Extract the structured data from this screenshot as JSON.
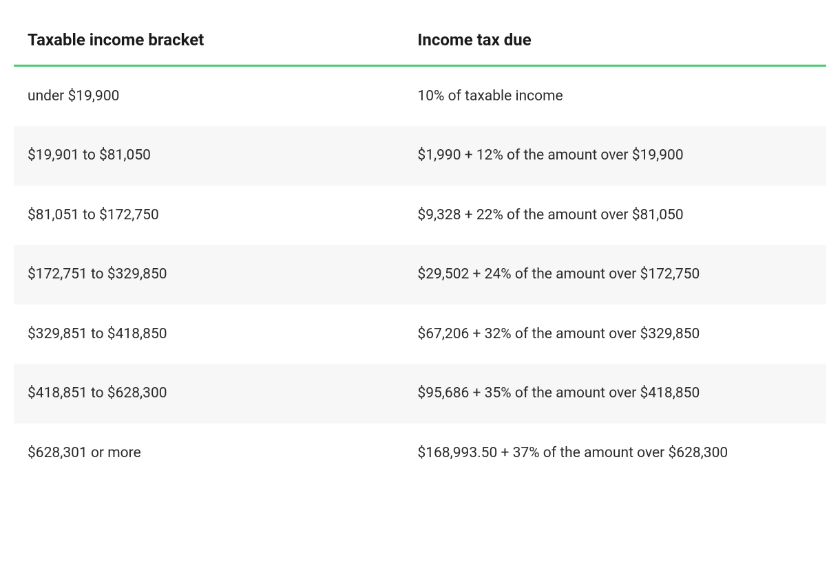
{
  "table": {
    "type": "table",
    "header_border_color": "#4bc970",
    "header_font_size_pt": 18,
    "body_font_size_pt": 16,
    "text_color": "#1a1a1a",
    "row_colors": [
      "#ffffff",
      "#f7f7f7"
    ],
    "columns": [
      {
        "key": "bracket",
        "label": "Taxable income bracket",
        "width_pct": 48,
        "align": "left"
      },
      {
        "key": "tax_due",
        "label": "Income tax due",
        "width_pct": 52,
        "align": "left"
      }
    ],
    "rows": [
      {
        "bracket": "under $19,900",
        "tax_due": "10% of taxable income"
      },
      {
        "bracket": "$19,901 to $81,050",
        "tax_due": "$1,990 + 12% of the amount over $19,900"
      },
      {
        "bracket": "$81,051 to $172,750",
        "tax_due": "$9,328 + 22% of the amount over $81,050"
      },
      {
        "bracket": "$172,751 to $329,850",
        "tax_due": "$29,502 + 24% of the amount over $172,750"
      },
      {
        "bracket": "$329,851 to $418,850",
        "tax_due": "$67,206 + 32% of the amount over $329,850"
      },
      {
        "bracket": "$418,851 to $628,300",
        "tax_due": "$95,686 + 35% of the amount over $418,850"
      },
      {
        "bracket": "$628,301 or more",
        "tax_due": "$168,993.50 + 37% of the amount over $628,300"
      }
    ]
  }
}
